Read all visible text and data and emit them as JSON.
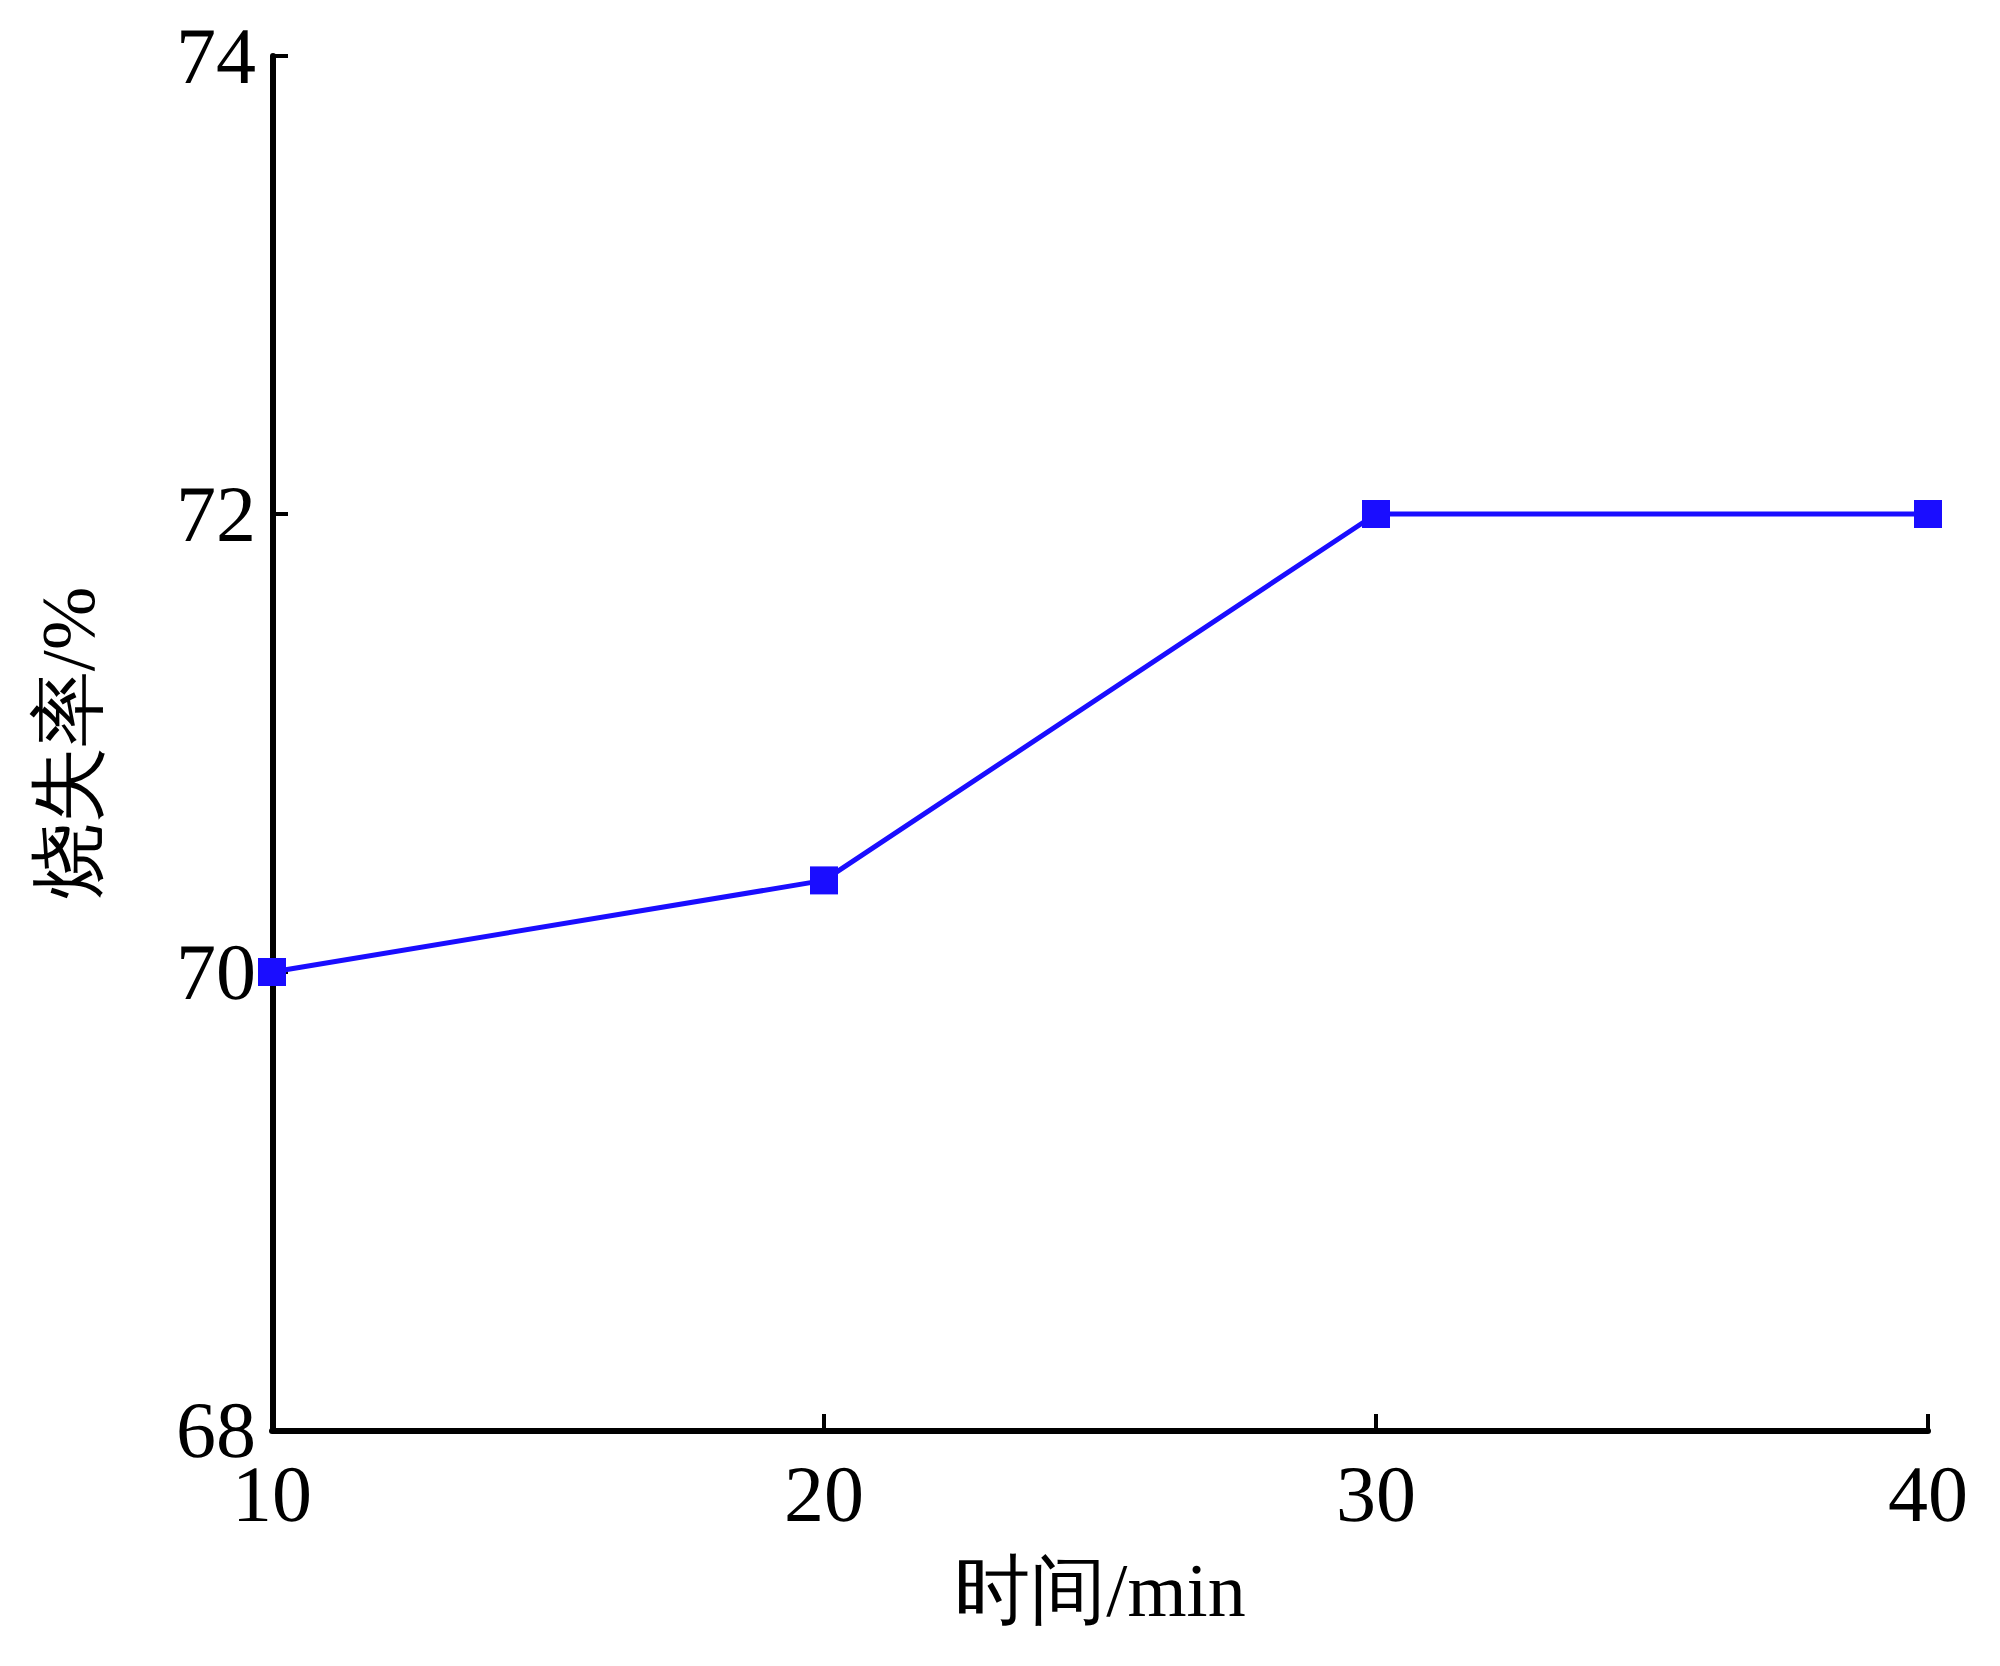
{
  "chart_data": {
    "type": "line",
    "xlabel": "时间/min",
    "ylabel": "烧失率/%",
    "x": [
      10,
      20,
      30,
      40
    ],
    "series": [
      {
        "color": "#1a0dff",
        "values": [
          70.0,
          70.4,
          72.0,
          72.0
        ]
      }
    ],
    "xlim": [
      10,
      40
    ],
    "xticks": [
      10,
      20,
      30,
      40
    ],
    "ylim": [
      68,
      74
    ],
    "yticks": [
      68,
      70,
      72,
      74
    ],
    "marker": "square",
    "line_style": "solid"
  }
}
